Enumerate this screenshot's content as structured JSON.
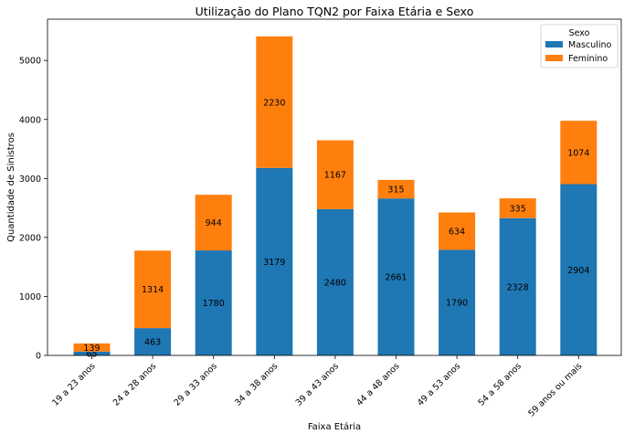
{
  "chart_data": {
    "type": "bar",
    "stacked": true,
    "title": "Utilização do Plano TQN2 por Faixa Etária e Sexo",
    "xlabel": "Faixa Etária",
    "ylabel": "Quantidade de Sinistros",
    "ylim": [
      0,
      5700
    ],
    "yticks": [
      0,
      1000,
      2000,
      3000,
      4000,
      5000
    ],
    "grid": false,
    "legend_position": "top-right",
    "legend_title": "Sexo",
    "categories": [
      "19 a 23 anos",
      "24 a 28 anos",
      "29 a 33 anos",
      "34 a 38 anos",
      "39 a 43 anos",
      "44 a 48 anos",
      "49 a 53 anos",
      "54 a 58 anos",
      "59 anos ou mais"
    ],
    "series": [
      {
        "name": "Masculino",
        "color": "#1f77b4",
        "values": [
          65,
          463,
          1780,
          3179,
          2480,
          2661,
          1790,
          2328,
          2904
        ]
      },
      {
        "name": "Feminino",
        "color": "#ff7f0e",
        "values": [
          139,
          1314,
          944,
          2230,
          1167,
          315,
          634,
          335,
          1074
        ]
      }
    ]
  }
}
